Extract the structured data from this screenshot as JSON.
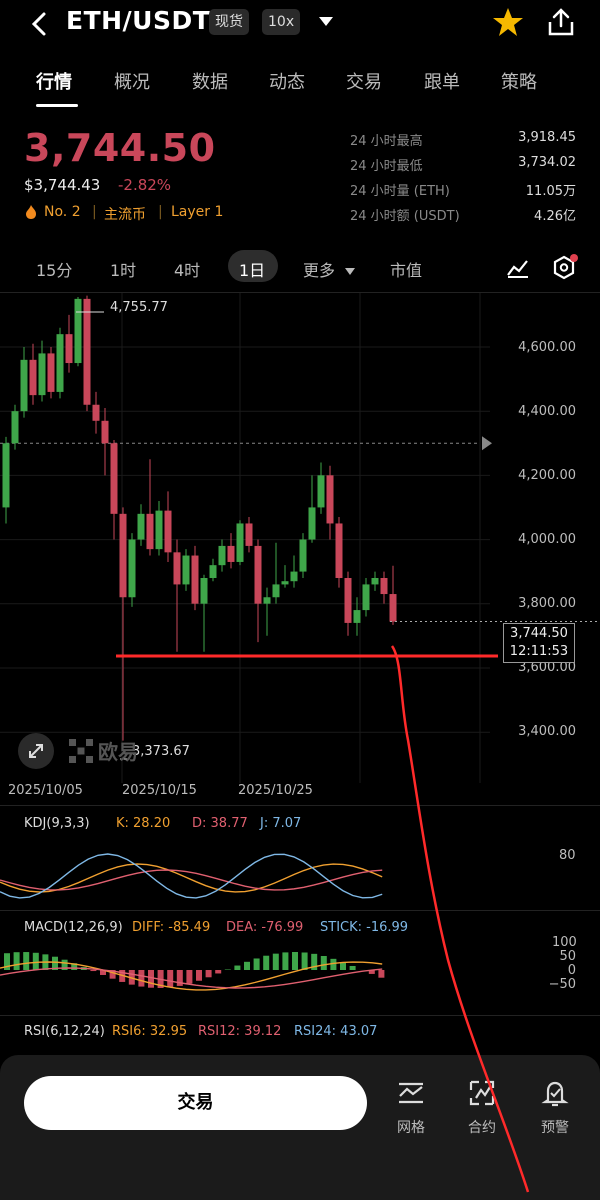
{
  "header": {
    "title": "ETH/USDT",
    "spot_badge": "现货",
    "leverage_badge": "10x"
  },
  "tabs": [
    "行情",
    "概况",
    "数据",
    "动态",
    "交易",
    "跟单",
    "策略"
  ],
  "price": {
    "last": "3,744.50",
    "usd": "$3,744.43",
    "change": "-2.82%",
    "rank": "No. 2",
    "tag1": "主流币",
    "tag2": "Layer 1"
  },
  "stats": [
    {
      "label": "24 小时最高",
      "value": "3,918.45"
    },
    {
      "label": "24 小时最低",
      "value": "3,734.02"
    },
    {
      "label": "24 小时量 (ETH)",
      "value": "11.05万"
    },
    {
      "label": "24 小时额 (USDT)",
      "value": "4.26亿"
    }
  ],
  "intervals": {
    "i1": "15分",
    "i2": "1时",
    "i3": "4时",
    "i4": "1日",
    "more": "更多",
    "market_cap": "市值"
  },
  "chart": {
    "y_ticks": [
      "4,600.00",
      "4,400.00",
      "4,200.00",
      "4,000.00",
      "3,800.00",
      "3,600.00",
      "3,400.00"
    ],
    "x_ticks": [
      "2025/10/05",
      "2025/10/15",
      "2025/10/25"
    ],
    "high_label": "4,755.77",
    "low_label": "3,373.67",
    "current_price": "3,744.50",
    "countdown": "12:11:53",
    "watermark": "欧易",
    "colors": {
      "up": "#3fa64a",
      "down": "#c9475a",
      "line_annot": "#ff2a2a"
    }
  },
  "chart_data": {
    "type": "candlestick",
    "y_range": [
      3300,
      4800
    ],
    "candles": [
      [
        4100,
        4300,
        4050,
        4320
      ],
      [
        4300,
        4400,
        4280,
        4420
      ],
      [
        4400,
        4560,
        4380,
        4600
      ],
      [
        4560,
        4450,
        4420,
        4610
      ],
      [
        4450,
        4580,
        4430,
        4620
      ],
      [
        4580,
        4460,
        4440,
        4600
      ],
      [
        4460,
        4640,
        4440,
        4660
      ],
      [
        4640,
        4550,
        4520,
        4700
      ],
      [
        4550,
        4750,
        4540,
        4756
      ],
      [
        4750,
        4420,
        4400,
        4760
      ],
      [
        4420,
        4370,
        4330,
        4460
      ],
      [
        4370,
        4300,
        4200,
        4410
      ],
      [
        4300,
        4080,
        4000,
        4310
      ],
      [
        4080,
        3820,
        3373,
        4100
      ],
      [
        3820,
        4000,
        3790,
        4020
      ],
      [
        4000,
        4080,
        3980,
        4110
      ],
      [
        4080,
        3970,
        3950,
        4250
      ],
      [
        3970,
        4090,
        3950,
        4120
      ],
      [
        4090,
        3960,
        3930,
        4150
      ],
      [
        3960,
        3860,
        3650,
        4000
      ],
      [
        3860,
        3950,
        3840,
        3970
      ],
      [
        3950,
        3800,
        3780,
        3980
      ],
      [
        3800,
        3880,
        3650,
        3890
      ],
      [
        3880,
        3920,
        3870,
        3940
      ],
      [
        3920,
        3980,
        3900,
        4000
      ],
      [
        3980,
        3930,
        3910,
        4020
      ],
      [
        3930,
        4050,
        3920,
        4060
      ],
      [
        4050,
        3980,
        3960,
        4070
      ],
      [
        3980,
        3800,
        3680,
        4000
      ],
      [
        3800,
        3820,
        3700,
        3850
      ],
      [
        3820,
        3860,
        3800,
        3990
      ],
      [
        3860,
        3870,
        3850,
        3920
      ],
      [
        3870,
        3900,
        3850,
        3950
      ],
      [
        3900,
        4000,
        3880,
        4020
      ],
      [
        4000,
        4100,
        3990,
        4200
      ],
      [
        4100,
        4200,
        4080,
        4240
      ],
      [
        4200,
        4050,
        4000,
        4230
      ],
      [
        4050,
        3880,
        3850,
        4070
      ],
      [
        3880,
        3740,
        3700,
        3900
      ],
      [
        3740,
        3780,
        3700,
        3820
      ],
      [
        3780,
        3860,
        3760,
        3880
      ],
      [
        3860,
        3880,
        3840,
        3900
      ],
      [
        3880,
        3830,
        3800,
        3900
      ],
      [
        3830,
        3744,
        3734,
        3918
      ]
    ]
  },
  "indicators": {
    "kdj": {
      "label": "KDJ(9,3,3)",
      "k": "K: 28.20",
      "d": "D: 38.77",
      "j": "J: 7.07",
      "tick": "80"
    },
    "macd": {
      "label": "MACD(12,26,9)",
      "diff": "DIFF: -85.49",
      "dea": "DEA: -76.99",
      "stick": "STICK: -16.99",
      "ticks": [
        "100",
        "50",
        "0",
        "−50"
      ]
    },
    "rsi": {
      "label": "RSI(6,12,24)",
      "r6": "RSI6: 32.95",
      "r12": "RSI12: 39.12",
      "r24": "RSI24: 43.07"
    }
  },
  "bottom": {
    "trade": "交易",
    "grid": "网格",
    "contract": "合约",
    "alert": "预警"
  }
}
